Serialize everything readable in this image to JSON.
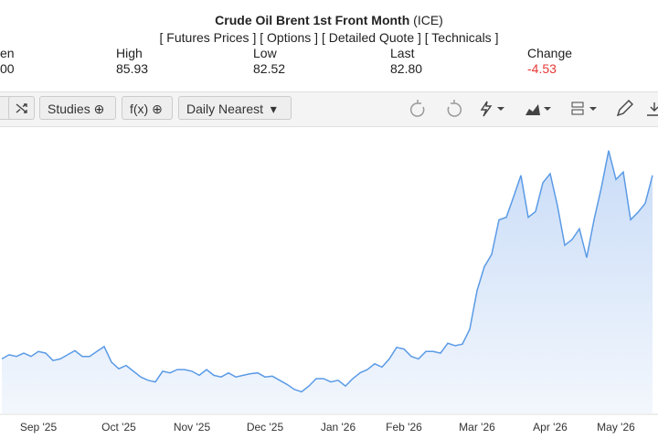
{
  "header": {
    "title": "Crude Oil Brent 1st Front Month",
    "exchange": "(ICE)",
    "links": [
      "[ Futures Prices ]",
      "[ Options ]",
      "[ Detailed Quote ]",
      "[ Technicals ]"
    ],
    "stats": [
      {
        "label": "en",
        "value": "00"
      },
      {
        "label": "High",
        "value": "85.93"
      },
      {
        "label": "Low",
        "value": "82.52"
      },
      {
        "label": "Last",
        "value": "82.80"
      },
      {
        "label": "Change",
        "value": "-4.53"
      }
    ]
  },
  "toolbar": {
    "buttons": [
      "Studies",
      "f(x)",
      "Daily Nearest"
    ]
  },
  "chart_data": {
    "type": "area",
    "color": "#5b9be6",
    "categories": [
      null,
      null,
      null,
      null,
      null,
      "Sep '25",
      null,
      null,
      null,
      null,
      null,
      null,
      null,
      null,
      null,
      null,
      "Oct '25",
      null,
      null,
      null,
      null,
      null,
      null,
      null,
      null,
      null,
      "Nov '25",
      null,
      null,
      null,
      null,
      null,
      null,
      null,
      null,
      null,
      "Dec '25",
      null,
      null,
      null,
      null,
      null,
      null,
      null,
      null,
      null,
      "Jan '26",
      null,
      null,
      null,
      null,
      null,
      null,
      null,
      null,
      "Feb '26",
      null,
      null,
      null,
      null,
      null,
      null,
      null,
      null,
      null,
      "Mar '26",
      null,
      null,
      null,
      null,
      null,
      null,
      null,
      null,
      null,
      "Apr '26",
      null,
      null,
      null,
      null,
      null,
      null,
      null,
      null,
      "May '26",
      null,
      null,
      null,
      null,
      null
    ],
    "values": [
      63.4,
      63.9,
      63.7,
      64.1,
      63.7,
      64.3,
      64.1,
      63.2,
      63.4,
      63.9,
      64.4,
      63.7,
      63.7,
      64.3,
      64.9,
      63.0,
      62.2,
      62.6,
      61.9,
      61.2,
      60.8,
      60.6,
      61.9,
      61.7,
      62.1,
      62.1,
      61.9,
      61.4,
      62.1,
      61.4,
      61.2,
      61.7,
      61.2,
      61.4,
      61.6,
      61.7,
      61.2,
      61.3,
      60.8,
      60.3,
      59.7,
      59.4,
      60.1,
      61.0,
      61.0,
      60.6,
      60.8,
      60.1,
      61.0,
      61.7,
      62.1,
      62.8,
      62.4,
      63.4,
      64.8,
      64.6,
      63.7,
      63.4,
      64.3,
      64.3,
      64.1,
      65.3,
      65.0,
      65.2,
      67.0,
      71.7,
      74.6,
      76.1,
      80.3,
      80.6,
      83.1,
      85.7,
      80.6,
      81.3,
      84.8,
      85.9,
      82.0,
      77.2,
      77.9,
      79.2,
      75.7,
      80.3,
      84.2,
      88.7,
      85.2,
      86.1,
      80.3,
      81.2,
      82.3,
      85.7
    ],
    "ylim": [
      57,
      92
    ]
  }
}
